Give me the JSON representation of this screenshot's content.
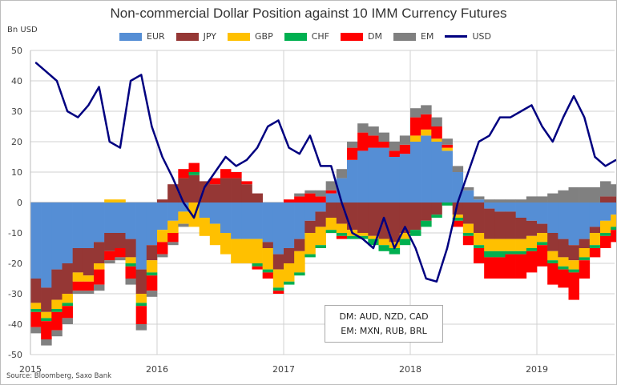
{
  "chart_data": {
    "type": "bar",
    "title": "Non-commercial Dollar Position against 10 IMM Currency Futures",
    "ylabel": "Bn USD",
    "ylim": [
      -50,
      50
    ],
    "yticks": [
      "50",
      "40",
      "30",
      "20",
      "10",
      "0",
      "-10",
      "-20",
      "-30",
      "-40",
      "-50"
    ],
    "xticks": [
      "2015",
      "2016",
      "2017",
      "2018",
      "2019"
    ],
    "grid": true,
    "legend_position": "top",
    "stacked": true,
    "x": [
      "2015-01",
      "2015-02",
      "2015-03",
      "2015-04",
      "2015-05",
      "2015-06",
      "2015-07",
      "2015-08",
      "2015-09",
      "2015-10",
      "2015-11",
      "2015-12",
      "2016-01",
      "2016-02",
      "2016-03",
      "2016-04",
      "2016-05",
      "2016-06",
      "2016-07",
      "2016-08",
      "2016-09",
      "2016-10",
      "2016-11",
      "2016-12",
      "2017-01",
      "2017-02",
      "2017-03",
      "2017-04",
      "2017-05",
      "2017-06",
      "2017-07",
      "2017-08",
      "2017-09",
      "2017-10",
      "2017-11",
      "2017-12",
      "2018-01",
      "2018-02",
      "2018-03",
      "2018-04",
      "2018-05",
      "2018-06",
      "2018-07",
      "2018-08",
      "2018-09",
      "2018-10",
      "2018-11",
      "2018-12",
      "2019-01",
      "2019-02",
      "2019-03",
      "2019-04",
      "2019-05",
      "2019-06",
      "2019-07",
      "2019-08"
    ],
    "series": [
      {
        "name": "EUR",
        "color": "#558ED5",
        "values": [
          -25,
          -28,
          -22,
          -20,
          -15,
          -15,
          -13,
          -10,
          -10,
          -12,
          -22,
          -14,
          -9,
          -6,
          -3,
          0,
          -5,
          -7,
          -10,
          -12,
          -12,
          -12,
          -13,
          -17,
          -15,
          -12,
          -6,
          -3,
          3,
          8,
          14,
          17,
          18,
          18,
          15,
          16,
          20,
          22,
          20,
          17,
          10,
          4,
          1,
          -2,
          -3,
          -3,
          -5,
          -6,
          -7,
          -10,
          -12,
          -14,
          -12,
          -8,
          -6,
          -4
        ]
      },
      {
        "name": "JPY",
        "color": "#953735",
        "values": [
          -8,
          -8,
          -10,
          -10,
          -8,
          -9,
          -7,
          -6,
          -5,
          -6,
          -8,
          -5,
          1,
          6,
          8,
          9,
          7,
          6,
          8,
          8,
          6,
          3,
          -2,
          -5,
          -5,
          -4,
          -4,
          -5,
          -5,
          -7,
          -9,
          -10,
          -11,
          -12,
          -13,
          -10,
          -9,
          -6,
          -4,
          0,
          -4,
          -7,
          -10,
          -10,
          -9,
          -9,
          -7,
          -5,
          -3,
          -6,
          -6,
          -5,
          -3,
          -2,
          2,
          2
        ]
      },
      {
        "name": "GBP",
        "color": "#FFC000",
        "values": [
          -2,
          -2,
          -3,
          -3,
          -3,
          -2,
          -2,
          1,
          1,
          -2,
          -3,
          -4,
          -4,
          -4,
          -4,
          -8,
          -6,
          -7,
          -7,
          -8,
          -8,
          -8,
          -7,
          -6,
          -6,
          -7,
          -7,
          -6,
          -4,
          -3,
          -2,
          -1,
          -1,
          -2,
          -2,
          -2,
          2,
          2,
          1,
          1,
          -1,
          -3,
          -4,
          -4,
          -4,
          -4,
          -4,
          -4,
          -3,
          -3,
          -3,
          -3,
          -3,
          -4,
          -4,
          -4
        ]
      },
      {
        "name": "CHF",
        "color": "#00B050",
        "values": [
          -1,
          -1,
          -1,
          -1,
          0,
          0,
          0,
          0,
          0,
          -1,
          -1,
          -1,
          0,
          0,
          0,
          1,
          0,
          0,
          0,
          0,
          0,
          -1,
          -1,
          -1,
          -1,
          -1,
          -1,
          -1,
          -1,
          -1,
          -1,
          -1,
          -2,
          -2,
          -2,
          -2,
          -2,
          -2,
          -1,
          -1,
          -1,
          -1,
          -1,
          -2,
          -2,
          -1,
          -1,
          -1,
          -1,
          -1,
          -1,
          -1,
          -1,
          -1,
          -1,
          -1
        ]
      },
      {
        "name": "DM",
        "color": "#FF0000",
        "values": [
          -5,
          -6,
          -6,
          -4,
          -3,
          -3,
          -5,
          -3,
          -3,
          -4,
          -6,
          -5,
          -4,
          -3,
          3,
          3,
          0,
          2,
          3,
          2,
          1,
          -1,
          -2,
          -1,
          1,
          2,
          3,
          2,
          1,
          -1,
          4,
          6,
          4,
          2,
          2,
          3,
          6,
          5,
          4,
          1,
          -2,
          -3,
          -5,
          -7,
          -7,
          -8,
          -8,
          -7,
          -7,
          -7,
          -6,
          -9,
          -6,
          -3,
          -4,
          -4
        ]
      },
      {
        "name": "EM",
        "color": "#808080",
        "values": [
          -2,
          -2,
          -2,
          -2,
          -1,
          -1,
          -2,
          -1,
          -1,
          -2,
          -2,
          -2,
          -1,
          -1,
          -1,
          0,
          0,
          0,
          0,
          0,
          0,
          0,
          0,
          0,
          0,
          1,
          1,
          2,
          3,
          3,
          2,
          3,
          3,
          3,
          3,
          3,
          3,
          3,
          3,
          2,
          2,
          1,
          1,
          1,
          1,
          1,
          1,
          2,
          2,
          3,
          4,
          5,
          5,
          5,
          5,
          4
        ]
      }
    ],
    "line": {
      "name": "USD",
      "color": "#000080",
      "values": [
        46,
        43,
        40,
        30,
        28,
        32,
        38,
        20,
        18,
        40,
        42,
        25,
        15,
        8,
        0,
        -5,
        5,
        10,
        15,
        12,
        14,
        18,
        25,
        27,
        18,
        16,
        22,
        12,
        12,
        0,
        -10,
        -12,
        -15,
        -5,
        -15,
        -8,
        -15,
        -25,
        -26,
        -15,
        0,
        10,
        20,
        22,
        28,
        28,
        30,
        32,
        25,
        20,
        28,
        35,
        28,
        15,
        12,
        14
      ]
    }
  },
  "note": {
    "line1": "DM: AUD, NZD, CAD",
    "line2": "EM: MXN, RUB, BRL"
  },
  "source": "Source: Bloomberg, Saxo Bank"
}
